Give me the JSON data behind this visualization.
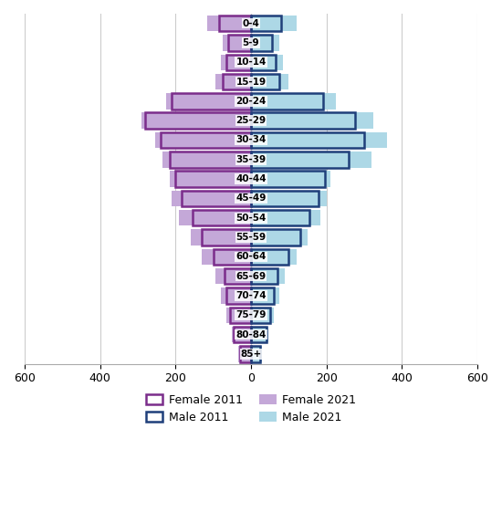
{
  "age_groups": [
    "0-4",
    "5-9",
    "10-14",
    "15-19",
    "20-24",
    "25-29",
    "30-34",
    "35-39",
    "40-44",
    "45-49",
    "50-54",
    "55-59",
    "60-64",
    "65-69",
    "70-74",
    "75-79",
    "80-84",
    "85+"
  ],
  "female_2011": [
    85,
    60,
    65,
    75,
    210,
    280,
    240,
    215,
    200,
    185,
    155,
    130,
    100,
    70,
    65,
    55,
    45,
    30
  ],
  "female_2021": [
    115,
    75,
    80,
    95,
    225,
    290,
    255,
    235,
    215,
    210,
    190,
    160,
    130,
    95,
    80,
    65,
    50,
    35
  ],
  "male_2011": [
    80,
    55,
    65,
    75,
    190,
    275,
    300,
    260,
    195,
    180,
    155,
    130,
    100,
    70,
    60,
    50,
    40,
    25
  ],
  "male_2021": [
    120,
    75,
    85,
    100,
    225,
    325,
    360,
    320,
    210,
    200,
    185,
    150,
    120,
    90,
    75,
    60,
    45,
    30
  ],
  "female_2011_color": "#7B2D8B",
  "female_2021_color": "#C4A8D8",
  "male_2011_color": "#1F3F7A",
  "male_2021_color": "#ADD8E6",
  "xlim": 600,
  "bar_height": 0.82
}
